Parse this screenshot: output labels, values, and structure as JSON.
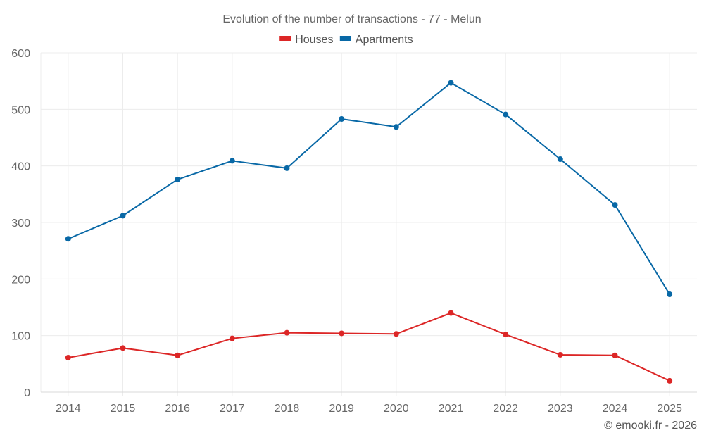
{
  "chart_data": {
    "type": "line",
    "title": "Evolution of the number of transactions - 77 - Melun",
    "xlabel": "",
    "ylabel": "",
    "categories": [
      "2014",
      "2015",
      "2016",
      "2017",
      "2018",
      "2019",
      "2020",
      "2021",
      "2022",
      "2023",
      "2024",
      "2025"
    ],
    "ylim": [
      0,
      600
    ],
    "yticks": [
      0,
      100,
      200,
      300,
      400,
      500,
      600
    ],
    "grid": true,
    "legend_position": "top-center",
    "series": [
      {
        "name": "Houses",
        "color": "#dc2626",
        "values": [
          61,
          78,
          65,
          95,
          105,
          104,
          103,
          140,
          102,
          66,
          65,
          20
        ]
      },
      {
        "name": "Apartments",
        "color": "#0868a6",
        "values": [
          271,
          312,
          376,
          409,
          396,
          483,
          469,
          547,
          491,
          412,
          331,
          173
        ]
      }
    ],
    "credit": "© emooki.fr - 2026"
  }
}
